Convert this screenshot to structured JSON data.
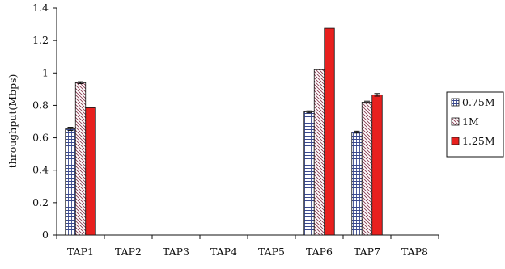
{
  "chart_data": {
    "type": "bar",
    "title": "",
    "xlabel": "",
    "ylabel": "throughput(Mbps)",
    "ylim": [
      0,
      1.4
    ],
    "yticks": [
      "0",
      "0.2",
      "0.4",
      "0.6",
      "0.8",
      "1",
      "1.2",
      "1.4"
    ],
    "categories": [
      "TAP1",
      "TAP2",
      "TAP3",
      "TAP4",
      "TAP5",
      "TAP6",
      "TAP7",
      "TAP8"
    ],
    "series": [
      {
        "name": "0.75M",
        "pattern": "grid",
        "values": [
          0.655,
          0,
          0,
          0,
          0,
          0.76,
          0.635,
          0
        ],
        "errors": [
          0.01,
          0,
          0,
          0,
          0,
          0.006,
          0.006,
          0
        ]
      },
      {
        "name": "1M",
        "pattern": "diagonal",
        "values": [
          0.94,
          0,
          0,
          0,
          0,
          1.02,
          0.82,
          0
        ],
        "errors": [
          0.006,
          0,
          0,
          0,
          0,
          0,
          0.006,
          0
        ]
      },
      {
        "name": "1.25M",
        "pattern": "solid",
        "color": "#e8201e",
        "values": [
          0.785,
          0,
          0,
          0,
          0,
          1.275,
          0.865,
          0
        ],
        "errors": [
          0,
          0,
          0,
          0,
          0,
          0,
          0.008,
          0
        ]
      }
    ],
    "grid": false,
    "legend_position": "right",
    "error_bars": true
  }
}
